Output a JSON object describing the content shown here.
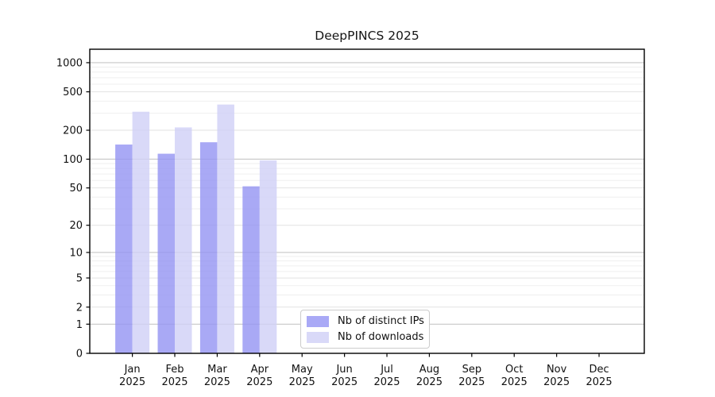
{
  "figure": {
    "title": "DeepPINCS 2025",
    "year_label": "2025"
  },
  "chart_data": {
    "type": "bar",
    "title": "DeepPINCS 2025",
    "categories": [
      "Jan",
      "Feb",
      "Mar",
      "Apr",
      "May",
      "Jun",
      "Jul",
      "Aug",
      "Sep",
      "Oct",
      "Nov",
      "Dec"
    ],
    "category_year": "2025",
    "series": [
      {
        "name": "Nb of distinct IPs",
        "color": "#9494f3",
        "opacity": 0.8,
        "legend_color": "#a9a9f6",
        "values": [
          142,
          114,
          150,
          52,
          0,
          0,
          0,
          0,
          0,
          0,
          0,
          0
        ]
      },
      {
        "name": "Nb of downloads",
        "color": "#cfcff6",
        "opacity": 0.8,
        "legend_color": "#d9d9f8",
        "values": [
          311,
          214,
          369,
          97,
          0,
          0,
          0,
          0,
          0,
          0,
          0,
          0
        ]
      }
    ],
    "xlabel": "",
    "ylabel": "",
    "y_scale": "log10(value+1)",
    "y_ticks": [
      0,
      1,
      2,
      5,
      10,
      20,
      50,
      100,
      200,
      500,
      1000
    ],
    "y_minor_gridlines": [
      3,
      4,
      6,
      7,
      8,
      9,
      30,
      40,
      60,
      70,
      80,
      90,
      300,
      400,
      600,
      700,
      800,
      900
    ],
    "y_power10_gridlines": [
      1,
      10,
      100,
      1000
    ],
    "ylim": [
      0,
      1380
    ],
    "grid": "horizontal",
    "legend_position": "lower-center-right-inside",
    "colors": {
      "grid_minor": "#efefef",
      "grid_major": "#e2e2e2",
      "grid_power10": "#c7c7c7",
      "frame": "#000000",
      "tick_label": "#111111"
    }
  }
}
